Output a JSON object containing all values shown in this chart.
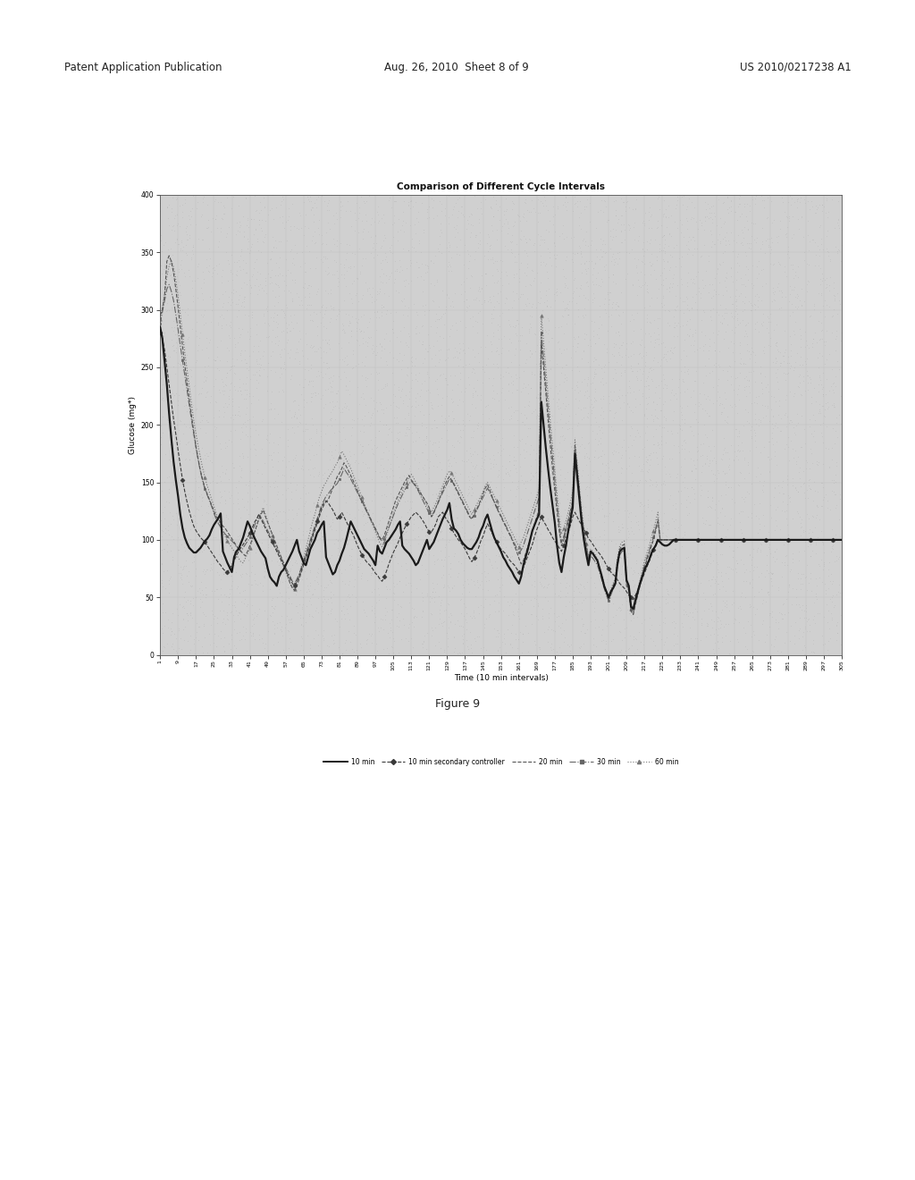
{
  "title": "Comparison of Different Cycle Intervals",
  "xlabel": "Time (10 min intervals)",
  "ylabel": "Glucose (mg*)",
  "ylim": [
    0,
    400
  ],
  "xlim": [
    1,
    305
  ],
  "yticks": [
    0,
    50,
    100,
    150,
    200,
    250,
    300,
    350,
    400
  ],
  "xticks": [
    1,
    9,
    17,
    25,
    33,
    41,
    49,
    57,
    65,
    73,
    81,
    89,
    97,
    105,
    113,
    121,
    129,
    137,
    145,
    153,
    161,
    169,
    177,
    185,
    193,
    201,
    209,
    217,
    225,
    233,
    241,
    249,
    257,
    265,
    273,
    281,
    289,
    297,
    305
  ],
  "figure_caption": "Figure 9",
  "header_left": "Patent Application Publication",
  "header_center": "Aug. 26, 2010  Sheet 8 of 9",
  "header_right": "US 2010/0217238 A1",
  "page_bg": "#ffffff",
  "plot_bg_color": "#d0d0d0",
  "legend_entries": [
    "10 min",
    "10 min secondary controller",
    "20 min",
    "30 min",
    "60 min"
  ],
  "line_10min": [
    285,
    275,
    255,
    235,
    210,
    188,
    168,
    152,
    138,
    122,
    110,
    102,
    97,
    93,
    91,
    89,
    89,
    91,
    93,
    96,
    99,
    101,
    104,
    109,
    113,
    116,
    119,
    123,
    90,
    85,
    80,
    76,
    72,
    85,
    90,
    92,
    97,
    102,
    109,
    116,
    112,
    107,
    102,
    98,
    94,
    90,
    87,
    84,
    75,
    68,
    65,
    63,
    60,
    68,
    72,
    74,
    78,
    82,
    86,
    90,
    95,
    100,
    90,
    85,
    80,
    78,
    85,
    92,
    96,
    100,
    106,
    109,
    113,
    116,
    85,
    80,
    75,
    70,
    72,
    78,
    82,
    88,
    93,
    100,
    108,
    116,
    112,
    108,
    104,
    100,
    96,
    92,
    90,
    88,
    85,
    82,
    78,
    95,
    90,
    88,
    93,
    98,
    100,
    103,
    106,
    109,
    113,
    116,
    95,
    92,
    90,
    88,
    85,
    82,
    78,
    80,
    85,
    90,
    95,
    100,
    92,
    95,
    98,
    103,
    108,
    113,
    118,
    122,
    126,
    132,
    118,
    110,
    108,
    105,
    100,
    97,
    95,
    93,
    92,
    92,
    95,
    98,
    102,
    108,
    112,
    118,
    122,
    115,
    108,
    102,
    98,
    94,
    90,
    85,
    82,
    78,
    75,
    72,
    68,
    65,
    62,
    68,
    78,
    85,
    92,
    100,
    108,
    113,
    118,
    122,
    220,
    200,
    180,
    162,
    145,
    130,
    115,
    95,
    80,
    72,
    85,
    95,
    108,
    118,
    128,
    175,
    155,
    135,
    115,
    100,
    88,
    78,
    90,
    88,
    85,
    82,
    75,
    68,
    60,
    55,
    50,
    55,
    58,
    62,
    80,
    90,
    92,
    93,
    65,
    60,
    42,
    40,
    48,
    55,
    62,
    68,
    74,
    78,
    82,
    88,
    92,
    95,
    100,
    98,
    96,
    95,
    95,
    96,
    98,
    100,
    100,
    100,
    100,
    100,
    100,
    100,
    100,
    100,
    100,
    100,
    100,
    100,
    100,
    100,
    100,
    100,
    100,
    100,
    100,
    100,
    100,
    100,
    100,
    100,
    100,
    100,
    100,
    100,
    100,
    100,
    100,
    100,
    100,
    100,
    100,
    100,
    100,
    100,
    100,
    100,
    100,
    100,
    100,
    100,
    100,
    100,
    100,
    100,
    100,
    100,
    100,
    100,
    100,
    100,
    100,
    100,
    100,
    100,
    100,
    100,
    100,
    100,
    100,
    100,
    100,
    100,
    100,
    100,
    100,
    100,
    100,
    100,
    100,
    100,
    100
  ],
  "line_10min_secondary": [
    280,
    275,
    265,
    250,
    235,
    220,
    205,
    192,
    178,
    165,
    152,
    142,
    133,
    125,
    118,
    112,
    108,
    105,
    102,
    100,
    98,
    95,
    92,
    89,
    86,
    83,
    80,
    78,
    75,
    73,
    72,
    75,
    78,
    82,
    86,
    90,
    93,
    96,
    99,
    102,
    106,
    110,
    115,
    118,
    122,
    118,
    114,
    110,
    106,
    102,
    98,
    94,
    90,
    86,
    82,
    78,
    74,
    70,
    66,
    62,
    60,
    64,
    68,
    74,
    80,
    86,
    92,
    98,
    104,
    110,
    116,
    122,
    128,
    132,
    134,
    132,
    129,
    126,
    122,
    118,
    120,
    124,
    120,
    116,
    112,
    108,
    105,
    100,
    95,
    91,
    87,
    84,
    81,
    79,
    77,
    74,
    71,
    69,
    66,
    64,
    68,
    73,
    79,
    84,
    89,
    93,
    97,
    102,
    106,
    110,
    114,
    117,
    120,
    122,
    124,
    122,
    120,
    117,
    114,
    110,
    107,
    107,
    110,
    114,
    120,
    122,
    124,
    120,
    117,
    114,
    110,
    106,
    103,
    100,
    98,
    95,
    92,
    88,
    84,
    81,
    84,
    88,
    93,
    99,
    103,
    109,
    114,
    110,
    106,
    102,
    98,
    95,
    92,
    90,
    88,
    85,
    82,
    80,
    78,
    75,
    72,
    72,
    76,
    81,
    86,
    91,
    96,
    103,
    109,
    114,
    120,
    116,
    113,
    109,
    106,
    102,
    99,
    96,
    93,
    90,
    95,
    101,
    106,
    113,
    120,
    124,
    120,
    116,
    113,
    109,
    106,
    101,
    99,
    96,
    93,
    90,
    88,
    85,
    82,
    78,
    75,
    72,
    70,
    68,
    65,
    62,
    60,
    58,
    55,
    52,
    50,
    48,
    52,
    56,
    61,
    66,
    71,
    76,
    81,
    86,
    91,
    96,
    101,
    100,
    100,
    100,
    100,
    100,
    100,
    100,
    100,
    100,
    100,
    100,
    100,
    100,
    100,
    100,
    100,
    100,
    100,
    100,
    100,
    100,
    100,
    100,
    100,
    100,
    100,
    100,
    100,
    100,
    100,
    100,
    100,
    100,
    100,
    100,
    100,
    100,
    100,
    100,
    100,
    100,
    100,
    100,
    100,
    100,
    100,
    100,
    100,
    100,
    100,
    100,
    100,
    100,
    100,
    100,
    100,
    100,
    100,
    100,
    100,
    100,
    100,
    100,
    100,
    100,
    100,
    100,
    100,
    100,
    100,
    100,
    100,
    100,
    100,
    100,
    100,
    100,
    100,
    100,
    100,
    100,
    100
  ],
  "line_20min": [
    295,
    300,
    312,
    342,
    347,
    342,
    332,
    318,
    302,
    285,
    268,
    252,
    237,
    222,
    208,
    194,
    181,
    170,
    160,
    152,
    145,
    140,
    135,
    130,
    125,
    120,
    118,
    115,
    112,
    110,
    107,
    104,
    101,
    98,
    95,
    92,
    90,
    88,
    86,
    90,
    95,
    100,
    106,
    112,
    118,
    122,
    126,
    120,
    115,
    110,
    105,
    100,
    95,
    90,
    85,
    80,
    74,
    68,
    62,
    58,
    56,
    60,
    66,
    72,
    78,
    84,
    90,
    96,
    102,
    108,
    114,
    120,
    126,
    130,
    133,
    135,
    140,
    145,
    150,
    155,
    158,
    162,
    167,
    164,
    160,
    156,
    152,
    147,
    143,
    138,
    134,
    130,
    126,
    122,
    118,
    114,
    110,
    106,
    102,
    100,
    104,
    110,
    116,
    122,
    128,
    134,
    138,
    142,
    146,
    150,
    153,
    156,
    152,
    150,
    147,
    144,
    141,
    138,
    135,
    132,
    128,
    120,
    123,
    128,
    133,
    138,
    143,
    148,
    152,
    155,
    152,
    148,
    144,
    140,
    136,
    132,
    128,
    124,
    120,
    118,
    122,
    126,
    130,
    135,
    140,
    145,
    148,
    143,
    138,
    133,
    128,
    124,
    120,
    116,
    112,
    108,
    104,
    100,
    95,
    90,
    84,
    79,
    82,
    88,
    94,
    100,
    107,
    114,
    120,
    127,
    270,
    250,
    228,
    205,
    182,
    162,
    143,
    125,
    108,
    95,
    100,
    108,
    116,
    124,
    133,
    182,
    162,
    142,
    122,
    108,
    96,
    84,
    90,
    88,
    85,
    82,
    75,
    68,
    60,
    54,
    48,
    55,
    60,
    65,
    82,
    92,
    95,
    96,
    60,
    56,
    38,
    35,
    44,
    52,
    60,
    68,
    76,
    82,
    88,
    94,
    100,
    108,
    116,
    100,
    100,
    100,
    100,
    100,
    100,
    100,
    100,
    100,
    100,
    100,
    100,
    100,
    100,
    100,
    100,
    100,
    100,
    100,
    100,
    100,
    100,
    100,
    100,
    100,
    100,
    100,
    100,
    100,
    100,
    100,
    100,
    100,
    100,
    100,
    100,
    100,
    100,
    100,
    100,
    100,
    100,
    100,
    100,
    100,
    100,
    100,
    100,
    100,
    100,
    100,
    100,
    100,
    100,
    100,
    100,
    100,
    100,
    100,
    100,
    100,
    100,
    100,
    100,
    100,
    100,
    100,
    100,
    100,
    100,
    100,
    100,
    100,
    100,
    100,
    100,
    100,
    100,
    100,
    100,
    100,
    100
  ],
  "line_30min": [
    288,
    298,
    308,
    318,
    322,
    316,
    308,
    296,
    283,
    269,
    256,
    243,
    230,
    217,
    204,
    192,
    180,
    169,
    159,
    151,
    144,
    139,
    134,
    129,
    123,
    118,
    114,
    111,
    108,
    105,
    103,
    101,
    99,
    97,
    94,
    92,
    90,
    93,
    96,
    99,
    102,
    107,
    112,
    117,
    122,
    120,
    116,
    112,
    108,
    104,
    100,
    96,
    92,
    88,
    84,
    80,
    76,
    72,
    68,
    64,
    62,
    66,
    70,
    76,
    82,
    88,
    94,
    100,
    106,
    112,
    118,
    124,
    130,
    134,
    138,
    140,
    143,
    145,
    147,
    149,
    153,
    157,
    162,
    159,
    156,
    153,
    149,
    145,
    141,
    137,
    133,
    129,
    125,
    121,
    117,
    113,
    109,
    105,
    101,
    99,
    101,
    106,
    111,
    116,
    121,
    126,
    131,
    135,
    139,
    143,
    146,
    149,
    151,
    149,
    146,
    143,
    139,
    135,
    131,
    127,
    123,
    121,
    124,
    128,
    132,
    137,
    141,
    145,
    149,
    153,
    151,
    149,
    145,
    141,
    137,
    133,
    129,
    125,
    121,
    119,
    121,
    125,
    129,
    133,
    137,
    141,
    145,
    141,
    137,
    133,
    129,
    125,
    121,
    117,
    113,
    109,
    105,
    101,
    97,
    93,
    89,
    91,
    95,
    101,
    107,
    113,
    119,
    125,
    131,
    137,
    280,
    258,
    236,
    214,
    192,
    172,
    152,
    132,
    112,
    98,
    103,
    110,
    118,
    126,
    135,
    178,
    158,
    138,
    118,
    103,
    90,
    79,
    86,
    84,
    81,
    78,
    72,
    65,
    58,
    52,
    47,
    52,
    57,
    62,
    77,
    87,
    90,
    91,
    62,
    57,
    39,
    36,
    45,
    53,
    62,
    70,
    78,
    84,
    90,
    96,
    102,
    110,
    118,
    100,
    100,
    100,
    100,
    100,
    100,
    100,
    100,
    100,
    100,
    100,
    100,
    100,
    100,
    100,
    100,
    100,
    100,
    100,
    100,
    100,
    100,
    100,
    100,
    100,
    100,
    100,
    100,
    100,
    100,
    100,
    100,
    100,
    100,
    100,
    100,
    100,
    100,
    100,
    100,
    100,
    100,
    100,
    100,
    100,
    100,
    100,
    100,
    100,
    100,
    100,
    100,
    100,
    100,
    100,
    100,
    100,
    100,
    100,
    100,
    100,
    100,
    100,
    100,
    100,
    100,
    100,
    100,
    100,
    100,
    100,
    100,
    100,
    100,
    100,
    100,
    100,
    100,
    100,
    100,
    100,
    100
  ],
  "line_60min": [
    292,
    302,
    314,
    328,
    338,
    343,
    337,
    326,
    312,
    296,
    279,
    263,
    248,
    233,
    218,
    204,
    192,
    181,
    171,
    162,
    154,
    147,
    141,
    135,
    129,
    123,
    117,
    112,
    107,
    103,
    99,
    96,
    93,
    90,
    87,
    84,
    81,
    80,
    84,
    88,
    93,
    99,
    105,
    111,
    118,
    124,
    128,
    122,
    116,
    110,
    104,
    98,
    92,
    87,
    82,
    77,
    72,
    67,
    62,
    59,
    57,
    63,
    70,
    77,
    84,
    92,
    100,
    108,
    116,
    122,
    130,
    137,
    142,
    147,
    150,
    154,
    157,
    160,
    164,
    167,
    172,
    177,
    174,
    170,
    166,
    162,
    157,
    152,
    147,
    142,
    137,
    132,
    127,
    122,
    117,
    112,
    107,
    102,
    97,
    94,
    98,
    104,
    110,
    116,
    122,
    128,
    134,
    138,
    142,
    147,
    150,
    154,
    157,
    154,
    150,
    146,
    142,
    138,
    134,
    130,
    126,
    124,
    128,
    132,
    137,
    142,
    147,
    152,
    157,
    160,
    158,
    154,
    150,
    146,
    142,
    138,
    134,
    130,
    126,
    122,
    126,
    130,
    134,
    138,
    142,
    147,
    150,
    146,
    142,
    138,
    134,
    130,
    126,
    122,
    118,
    114,
    110,
    106,
    102,
    98,
    94,
    98,
    102,
    108,
    114,
    120,
    126,
    132,
    138,
    144,
    295,
    272,
    249,
    226,
    203,
    182,
    161,
    140,
    120,
    105,
    110,
    116,
    124,
    133,
    142,
    187,
    167,
    146,
    126,
    110,
    97,
    85,
    92,
    90,
    87,
    84,
    77,
    70,
    62,
    56,
    51,
    57,
    62,
    67,
    85,
    95,
    98,
    99,
    65,
    60,
    40,
    38,
    47,
    56,
    65,
    73,
    82,
    88,
    94,
    101,
    108,
    116,
    124,
    100,
    100,
    100,
    100,
    100,
    100,
    100,
    100,
    100,
    100,
    100,
    100,
    100,
    100,
    100,
    100,
    100,
    100,
    100,
    100,
    100,
    100,
    100,
    100,
    100,
    100,
    100,
    100,
    100,
    100,
    100,
    100,
    100,
    100,
    100,
    100,
    100,
    100,
    100,
    100,
    100,
    100,
    100,
    100,
    100,
    100,
    100,
    100,
    100,
    100,
    100,
    100,
    100,
    100,
    100,
    100,
    100,
    100,
    100,
    100,
    100,
    100,
    100,
    100,
    100,
    100,
    100,
    100,
    100,
    100,
    100,
    100,
    100,
    100,
    100,
    100,
    100,
    100,
    100,
    100,
    100,
    100
  ]
}
